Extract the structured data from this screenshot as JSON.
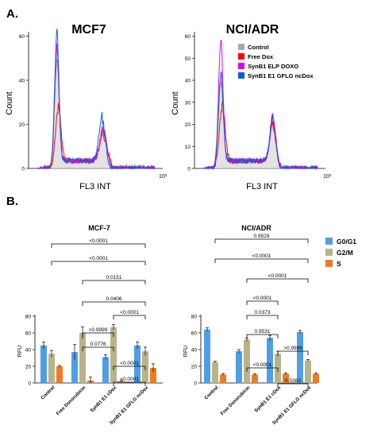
{
  "panel_a": {
    "label": "A.",
    "x_axis_label": "FL3 INT",
    "x_max_label": "10³",
    "y_axis_label": "Count",
    "legend": [
      {
        "name": "Control",
        "color": "#a8a8a8"
      },
      {
        "name": "Free Dox",
        "color": "#ff0000"
      },
      {
        "name": "SynB1 ELP DOXO",
        "color": "#d800ff"
      },
      {
        "name": "SynB1 E1 GFLG ncDox",
        "color": "#0a5fd0"
      }
    ],
    "plots": [
      {
        "title": "MCF7",
        "yticks": [
          "0",
          "20",
          "40",
          "60"
        ],
        "ymax": 62
      },
      {
        "title": "NCI/ADR",
        "yticks": [
          "0",
          "10",
          "20",
          "30",
          "40",
          "50",
          "60"
        ],
        "ymax": 62
      }
    ]
  },
  "panel_b": {
    "label": "B.",
    "legend": [
      {
        "name": "G0/G1",
        "color": "#4f9fe6"
      },
      {
        "name": "G2/M",
        "color": "#b9b38a"
      },
      {
        "name": "S",
        "color": "#f07a22"
      }
    ]
  },
  "chart_data": [
    {
      "type": "area",
      "title": "MCF7",
      "xlabel": "FL3 INT",
      "ylabel": "Count",
      "ylim": [
        0,
        62
      ],
      "series": [
        {
          "name": "Control",
          "color": "#a8a8a8",
          "peaks": [
            {
              "x": 0.21,
              "y": 47,
              "w": 0.017
            },
            {
              "x": 0.56,
              "y": 18,
              "w": 0.024
            }
          ]
        },
        {
          "name": "Free Dox",
          "color": "#ff0000",
          "peaks": [
            {
              "x": 0.22,
              "y": 26,
              "w": 0.02
            },
            {
              "x": 0.56,
              "y": 13,
              "w": 0.03
            }
          ]
        },
        {
          "name": "SynB1 ELP DOXO",
          "color": "#d800ff",
          "peaks": [
            {
              "x": 0.21,
              "y": 52,
              "w": 0.017
            },
            {
              "x": 0.56,
              "y": 15,
              "w": 0.026
            }
          ]
        },
        {
          "name": "SynB1 E1 GFLG ncDox",
          "color": "#0a5fd0",
          "peaks": [
            {
              "x": 0.21,
              "y": 60,
              "w": 0.016
            },
            {
              "x": 0.55,
              "y": 21,
              "w": 0.024
            }
          ]
        }
      ]
    },
    {
      "type": "area",
      "title": "NCI/ADR",
      "xlabel": "FL3 INT",
      "ylabel": "Count",
      "ylim": [
        0,
        62
      ],
      "series": [
        {
          "name": "Control",
          "color": "#a8a8a8",
          "peaks": [
            {
              "x": 0.2,
              "y": 37,
              "w": 0.02
            },
            {
              "x": 0.6,
              "y": 21,
              "w": 0.022
            }
          ]
        },
        {
          "name": "Free Dox",
          "color": "#ff0000",
          "peaks": [
            {
              "x": 0.21,
              "y": 27,
              "w": 0.022
            },
            {
              "x": 0.6,
              "y": 17,
              "w": 0.024
            }
          ]
        },
        {
          "name": "SynB1 ELP DOXO",
          "color": "#d800ff",
          "peaks": [
            {
              "x": 0.2,
              "y": 57,
              "w": 0.017
            },
            {
              "x": 0.6,
              "y": 22,
              "w": 0.022
            }
          ]
        },
        {
          "name": "SynB1 E1 GFLG ncDox",
          "color": "#0a5fd0",
          "peaks": [
            {
              "x": 0.2,
              "y": 42,
              "w": 0.018
            },
            {
              "x": 0.6,
              "y": 20,
              "w": 0.022
            }
          ]
        }
      ]
    },
    {
      "type": "bar",
      "title": "MCF-7",
      "ylabel": "RFU",
      "ylim": [
        0,
        80
      ],
      "yticks": [
        0,
        20,
        40,
        60,
        80
      ],
      "categories": [
        "Control",
        "Free Doxorubicin",
        "SynB1 E1 cDox",
        "SynB1 E1 GFLG ncDox"
      ],
      "series": [
        {
          "name": "G0/G1",
          "values": [
            45,
            37,
            31,
            45
          ],
          "errors": [
            4,
            9,
            3,
            4
          ]
        },
        {
          "name": "G2/M",
          "values": [
            35,
            60,
            67,
            38
          ],
          "errors": [
            4,
            7,
            3,
            5
          ]
        },
        {
          "name": "S",
          "values": [
            20,
            3,
            2,
            18
          ],
          "errors": [
            1,
            4,
            1,
            5
          ]
        }
      ],
      "annotations": [
        {
          "text": "<0.0001",
          "from": 0,
          "to": 3
        },
        {
          "text": "<0.0001",
          "from": 0,
          "to": 3
        },
        {
          "text": "0.0151",
          "from": 1,
          "to": 3
        },
        {
          "text": "0.0406",
          "from": 1,
          "to": 3
        },
        {
          "text": "<0.0001",
          "from": 2,
          "to": 3
        },
        {
          "text": ">0.9999",
          "from": 1,
          "to": 2
        },
        {
          "text": "0.0776",
          "from": 1,
          "to": 2
        },
        {
          "text": "<0.0001",
          "from": 2,
          "to": 3
        },
        {
          "text": "<0.0001",
          "from": 2,
          "to": 3
        }
      ]
    },
    {
      "type": "bar",
      "title": "NCI/ADR",
      "ylabel": "RFU",
      "ylim": [
        0,
        80
      ],
      "yticks": [
        0,
        20,
        40,
        60,
        80
      ],
      "categories": [
        "Control",
        "Free Doxorubicin",
        "SynB1 E1 cDox",
        "SynB1 E1 GFLG ncDox"
      ],
      "series": [
        {
          "name": "G0/G1",
          "values": [
            64,
            38,
            54,
            61
          ],
          "errors": [
            2,
            2,
            3,
            2
          ]
        },
        {
          "name": "G2/M",
          "values": [
            25,
            52,
            35,
            27
          ],
          "errors": [
            1,
            2,
            3,
            1
          ]
        },
        {
          "name": "S",
          "values": [
            10,
            10,
            11,
            11
          ],
          "errors": [
            1,
            1,
            1,
            1
          ]
        }
      ],
      "annotations": [
        {
          "text": "0.9529",
          "from": 0,
          "to": 3
        },
        {
          "text": "<0.0001",
          "from": 0,
          "to": 3
        },
        {
          "text": "<0.0001",
          "from": 1,
          "to": 3
        },
        {
          "text": "<0.0001",
          "from": 1,
          "to": 2
        },
        {
          "text": "0.0373",
          "from": 1,
          "to": 2
        },
        {
          "text": "0.9531",
          "from": 1,
          "to": 2
        },
        {
          "text": ">0.9999",
          "from": 2,
          "to": 3
        },
        {
          "text": "<0.0001",
          "from": 1,
          "to": 2
        },
        {
          "text": "0.0362",
          "from": 2,
          "to": 3
        }
      ]
    }
  ]
}
